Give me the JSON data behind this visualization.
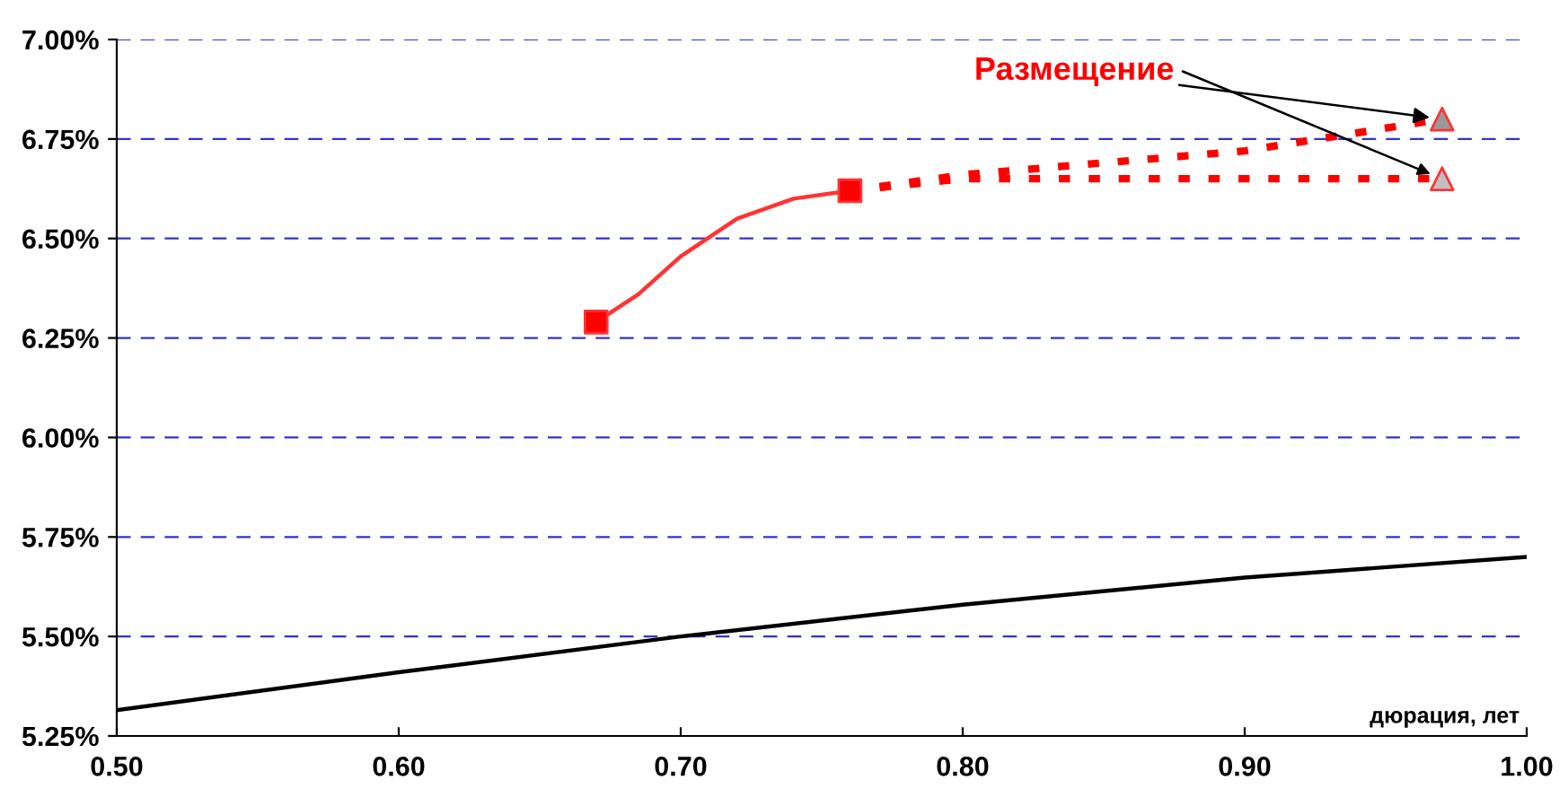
{
  "chart_data": {
    "type": "line",
    "xlabel": "дюрация, лет",
    "xlim": [
      0.5,
      1.0
    ],
    "ylim": [
      5.25,
      7.0
    ],
    "xticks": [
      {
        "value": 0.5,
        "label": "0.50"
      },
      {
        "value": 0.6,
        "label": "0.60"
      },
      {
        "value": 0.7,
        "label": "0.70"
      },
      {
        "value": 0.8,
        "label": "0.80"
      },
      {
        "value": 0.9,
        "label": "0.90"
      },
      {
        "value": 1.0,
        "label": "1.00"
      }
    ],
    "yticks": [
      {
        "value": 5.25,
        "label": "5.25%"
      },
      {
        "value": 5.5,
        "label": "5.50%"
      },
      {
        "value": 5.75,
        "label": "5.75%"
      },
      {
        "value": 6.0,
        "label": "6.00%"
      },
      {
        "value": 6.25,
        "label": "6.25%"
      },
      {
        "value": 6.5,
        "label": "6.50%"
      },
      {
        "value": 6.75,
        "label": "6.75%"
      },
      {
        "value": 7.0,
        "label": "7.00%"
      }
    ],
    "grid": "y",
    "series": [
      {
        "color": "#000000",
        "line_style": "solid",
        "x": [
          0.5,
          0.6,
          0.7,
          0.8,
          0.9,
          1.0
        ],
        "values": [
          5.315,
          5.41,
          5.5,
          5.58,
          5.648,
          5.7
        ]
      },
      {
        "type": "line",
        "color": "#ff3333",
        "line_style": "solid",
        "x": [
          0.67,
          0.685,
          0.7,
          0.72,
          0.74,
          0.76
        ],
        "values": [
          6.29,
          6.36,
          6.455,
          6.55,
          6.6,
          6.62
        ]
      },
      {
        "type": "line",
        "color": "#ff0000",
        "line_style": "dotted",
        "x": [
          0.76,
          0.8,
          0.85,
          0.9,
          0.97
        ],
        "values": [
          6.62,
          6.66,
          6.69,
          6.72,
          6.8
        ]
      },
      {
        "type": "line",
        "color": "#ff0000",
        "line_style": "dotted",
        "x": [
          0.76,
          0.8,
          0.9,
          0.97
        ],
        "values": [
          6.62,
          6.65,
          6.65,
          6.65
        ]
      },
      {
        "type": "scatter",
        "marker": "square",
        "color": "#ff0000",
        "x": [
          0.67,
          0.76
        ],
        "values": [
          6.29,
          6.62
        ]
      },
      {
        "type": "scatter",
        "marker": "triangle",
        "colors": [
          "#999999",
          "#c0c0c0"
        ],
        "x": [
          0.97,
          0.97
        ],
        "values": [
          6.8,
          6.65
        ]
      }
    ],
    "annotations": [
      {
        "text": "Размещение",
        "x": 0.97,
        "y": 6.8
      }
    ]
  }
}
